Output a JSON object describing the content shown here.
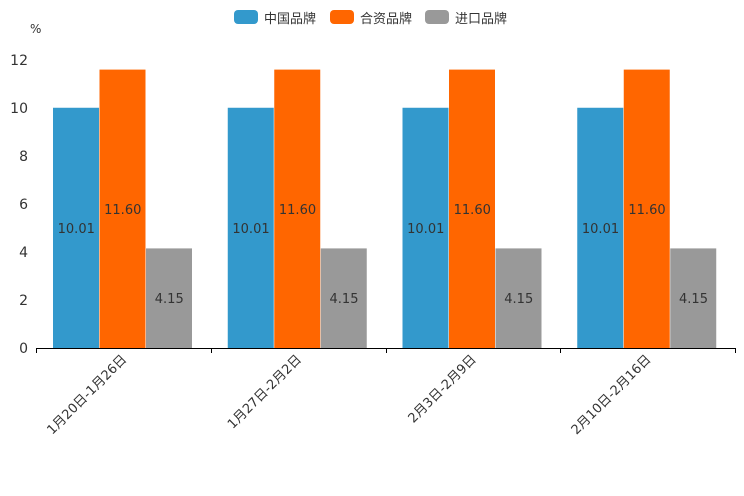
{
  "chart_data": {
    "type": "bar",
    "title": "",
    "xlabel": "",
    "ylabel": "%",
    "ylim": [
      0,
      12
    ],
    "yticks": [
      0,
      2,
      4,
      6,
      8,
      10,
      12
    ],
    "categories": [
      "1月20日-1月26日",
      "1月27日-2月2日",
      "2月3日-2月9日",
      "2月10日-2月16日"
    ],
    "series": [
      {
        "name": "中国品牌",
        "color": "#3399cc",
        "values": [
          10.01,
          10.01,
          10.01,
          10.01
        ],
        "labels": [
          "10.01",
          "10.01",
          "10.01",
          "10.01"
        ]
      },
      {
        "name": "合资品牌",
        "color": "#ff6600",
        "values": [
          11.6,
          11.6,
          11.6,
          11.6
        ],
        "labels": [
          "11.60",
          "11.60",
          "11.60",
          "11.60"
        ]
      },
      {
        "name": "进口品牌",
        "color": "#999999",
        "values": [
          4.15,
          4.15,
          4.15,
          4.15
        ],
        "labels": [
          "4.15",
          "4.15",
          "4.15",
          "4.15"
        ]
      }
    ],
    "legend_position": "top-center"
  }
}
